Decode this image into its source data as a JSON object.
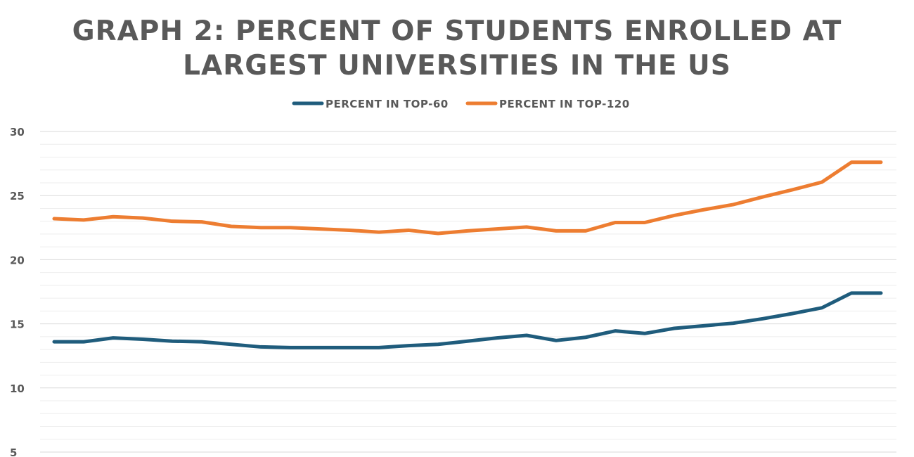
{
  "chart_data": {
    "type": "line",
    "title": "GRAPH 2: PERCENT OF STUDENTS ENROLLED AT LARGEST UNIVERSITIES IN THE US",
    "title_lines": [
      "GRAPH 2: PERCENT OF STUDENTS ENROLLED AT",
      "LARGEST UNIVERSITIES IN THE US"
    ],
    "xlabel": "",
    "ylabel": "",
    "ylim": [
      5,
      30
    ],
    "yticks": [
      5,
      10,
      15,
      20,
      25,
      30
    ],
    "y_minor_step": 1,
    "legend_position": "top-center",
    "x": [
      1,
      2,
      3,
      4,
      5,
      6,
      7,
      8,
      9,
      10,
      11,
      12,
      13,
      14,
      15,
      16,
      17,
      18,
      19,
      20,
      21,
      22,
      23,
      24,
      25,
      26,
      27,
      28,
      29
    ],
    "series": [
      {
        "name": "PERCENT IN TOP-60",
        "color": "#1f5c7c",
        "values": [
          13.6,
          13.6,
          13.9,
          13.8,
          13.65,
          13.6,
          13.4,
          13.2,
          13.15,
          13.15,
          13.15,
          13.15,
          13.3,
          13.4,
          13.65,
          13.9,
          14.1,
          13.7,
          13.95,
          14.45,
          14.25,
          14.65,
          14.85,
          15.05,
          15.4,
          15.8,
          16.25,
          17.4,
          17.4
        ]
      },
      {
        "name": "PERCENT IN TOP-120",
        "color": "#ed7d31",
        "values": [
          23.2,
          23.1,
          23.35,
          23.25,
          23.0,
          22.95,
          22.6,
          22.5,
          22.5,
          22.4,
          22.3,
          22.15,
          22.3,
          22.05,
          22.25,
          22.4,
          22.55,
          22.25,
          22.25,
          22.9,
          22.9,
          23.45,
          23.9,
          24.3,
          24.9,
          25.45,
          26.05,
          27.6,
          27.6
        ]
      }
    ]
  }
}
